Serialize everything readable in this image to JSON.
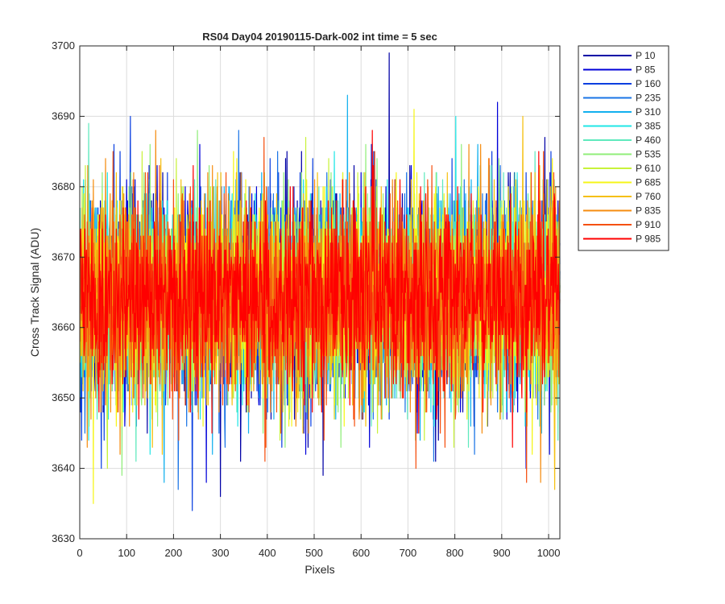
{
  "chart_data": {
    "type": "line",
    "title": "RS04 Day04 20190115-Dark-002 int time = 5 sec",
    "xlabel": "Pixels",
    "ylabel": "Cross Track Signal (ADU)",
    "xlim": [
      0,
      1024
    ],
    "ylim": [
      3630,
      3700
    ],
    "x_ticks": [
      0,
      100,
      200,
      300,
      400,
      500,
      600,
      700,
      800,
      900,
      1000
    ],
    "y_ticks": [
      3630,
      3640,
      3650,
      3660,
      3670,
      3680,
      3690,
      3700
    ],
    "grid": true,
    "legend_position": "outside-top-right",
    "x_range": [
      1,
      1024
    ],
    "series": [
      {
        "name": "P 10",
        "color": "#0000a6",
        "mean": 3664.5,
        "std": 7.0,
        "min": 3636,
        "max": 3699
      },
      {
        "name": "P 85",
        "color": "#0000d9",
        "mean": 3664.5,
        "std": 7.0,
        "min": 3638,
        "max": 3692
      },
      {
        "name": "P 160",
        "color": "#0a3fe0",
        "mean": 3664.5,
        "std": 7.0,
        "min": 3634,
        "max": 3690
      },
      {
        "name": "P 235",
        "color": "#1a74e6",
        "mean": 3664.5,
        "std": 7.0,
        "min": 3637,
        "max": 3688
      },
      {
        "name": "P 310",
        "color": "#12b0ee",
        "mean": 3664.5,
        "std": 7.0,
        "min": 3638,
        "max": 3693
      },
      {
        "name": "P 385",
        "color": "#20e6e6",
        "mean": 3664.5,
        "std": 7.0,
        "min": 3642,
        "max": 3690
      },
      {
        "name": "P 460",
        "color": "#5fe9bd",
        "mean": 3664.5,
        "std": 7.0,
        "min": 3641,
        "max": 3689
      },
      {
        "name": "P 535",
        "color": "#90ee7a",
        "mean": 3664.5,
        "std": 7.0,
        "min": 3639,
        "max": 3688
      },
      {
        "name": "P 610",
        "color": "#c8f23a",
        "mean": 3664.5,
        "std": 7.0,
        "min": 3640,
        "max": 3687
      },
      {
        "name": "P 685",
        "color": "#f5f518",
        "mean": 3664.5,
        "std": 7.0,
        "min": 3635,
        "max": 3691
      },
      {
        "name": "P 760",
        "color": "#f5c010",
        "mean": 3664.5,
        "std": 7.0,
        "min": 3637,
        "max": 3690
      },
      {
        "name": "P 835",
        "color": "#f58c10",
        "mean": 3664.5,
        "std": 7.0,
        "min": 3638,
        "max": 3688
      },
      {
        "name": "P 910",
        "color": "#f55010",
        "mean": 3664.5,
        "std": 7.0,
        "min": 3638,
        "max": 3687
      },
      {
        "name": "P 985",
        "color": "#ff0000",
        "mean": 3664.5,
        "std": 6.5,
        "min": 3643,
        "max": 3688
      }
    ]
  }
}
